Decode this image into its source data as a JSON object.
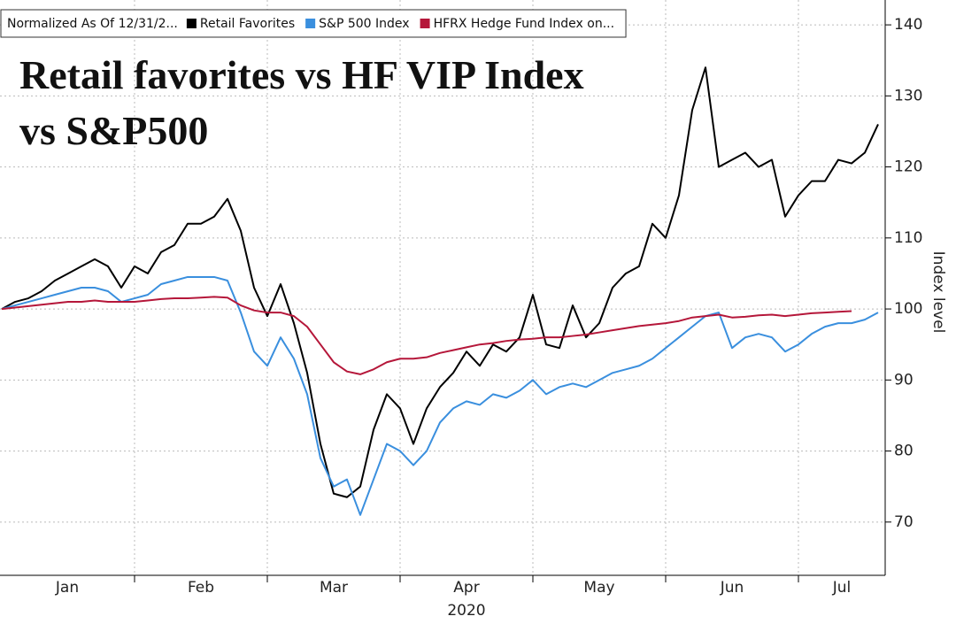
{
  "chart_data": {
    "type": "line",
    "title": [
      "Retail favorites vs HF VIP Index",
      "vs S&P500"
    ],
    "legend_title": "Normalized As Of 12/31/2...",
    "ylabel": "Index level",
    "xlabel": "2020",
    "categories": [
      "Jan",
      "Jan",
      "Jan",
      "Jan",
      "Jan",
      "Jan",
      "Jan",
      "Jan",
      "Jan",
      "Jan",
      "Feb",
      "Feb",
      "Feb",
      "Feb",
      "Feb",
      "Feb",
      "Feb",
      "Feb",
      "Feb",
      "Feb",
      "Mar",
      "Mar",
      "Mar",
      "Mar",
      "Mar",
      "Mar",
      "Mar",
      "Mar",
      "Mar",
      "Mar",
      "Apr",
      "Apr",
      "Apr",
      "Apr",
      "Apr",
      "Apr",
      "Apr",
      "Apr",
      "Apr",
      "Apr",
      "May",
      "May",
      "May",
      "May",
      "May",
      "May",
      "May",
      "May",
      "May",
      "May",
      "Jun",
      "Jun",
      "Jun",
      "Jun",
      "Jun",
      "Jun",
      "Jun",
      "Jun",
      "Jun",
      "Jun",
      "Jul",
      "Jul",
      "Jul",
      "Jul",
      "Jul",
      "Jul",
      "Jul"
    ],
    "series": [
      {
        "name": "Retail Favorites",
        "color": "#000000",
        "values": [
          100,
          101,
          101.5,
          102.5,
          104,
          105,
          106,
          107,
          106,
          103,
          106,
          105,
          108,
          109,
          112,
          112,
          113,
          115.5,
          111,
          103,
          99,
          103.5,
          98,
          91,
          81,
          74,
          73.5,
          75,
          83,
          88,
          86,
          81,
          86,
          89,
          91,
          94,
          92,
          95,
          94,
          96,
          102,
          95,
          94.5,
          100.5,
          96,
          98,
          103,
          105,
          106,
          112,
          110,
          116,
          128,
          134,
          120,
          121,
          122,
          120,
          121,
          113,
          116,
          118,
          118,
          121,
          120.5,
          122,
          126
        ]
      },
      {
        "name": "S&P 500 Index",
        "color": "#3a8fde",
        "values": [
          100,
          100.5,
          101,
          101.5,
          102,
          102.5,
          103,
          103,
          102.5,
          101,
          101.5,
          102,
          103.5,
          104,
          104.5,
          104.5,
          104.5,
          104,
          99.5,
          94,
          92,
          96,
          93,
          88,
          79,
          75,
          76,
          71,
          76,
          81,
          80,
          78,
          80,
          84,
          86,
          87,
          86.5,
          88,
          87.5,
          88.5,
          90,
          88,
          89,
          89.5,
          89,
          90,
          91,
          91.5,
          92,
          93,
          94.5,
          96,
          97.5,
          99,
          99.5,
          94.5,
          96,
          96.5,
          96,
          94,
          95,
          96.5,
          97.5,
          98,
          98,
          98.5,
          99.5
        ]
      },
      {
        "name": "HFRX Hedge Fund Index on...",
        "color": "#b5173a",
        "values": [
          100,
          100.2,
          100.4,
          100.6,
          100.8,
          101,
          101,
          101.2,
          101,
          101,
          101,
          101.2,
          101.4,
          101.5,
          101.5,
          101.6,
          101.7,
          101.6,
          100.5,
          99.8,
          99.5,
          99.5,
          99,
          97.5,
          95,
          92.5,
          91.2,
          90.8,
          91.5,
          92.5,
          93,
          93,
          93.2,
          93.8,
          94.2,
          94.6,
          95,
          95.2,
          95.5,
          95.7,
          95.8,
          96,
          96,
          96.2,
          96.4,
          96.7,
          97,
          97.3,
          97.6,
          97.8,
          98,
          98.3,
          98.8,
          99,
          99.2,
          98.8,
          98.9,
          99.1,
          99.2,
          99,
          99.2,
          99.4,
          99.5,
          99.6,
          99.7,
          null,
          null
        ]
      }
    ],
    "ylim": [
      62.5,
      143.5
    ],
    "yticks": [
      70,
      80,
      90,
      100,
      110,
      120,
      130,
      140
    ],
    "grid": true
  }
}
